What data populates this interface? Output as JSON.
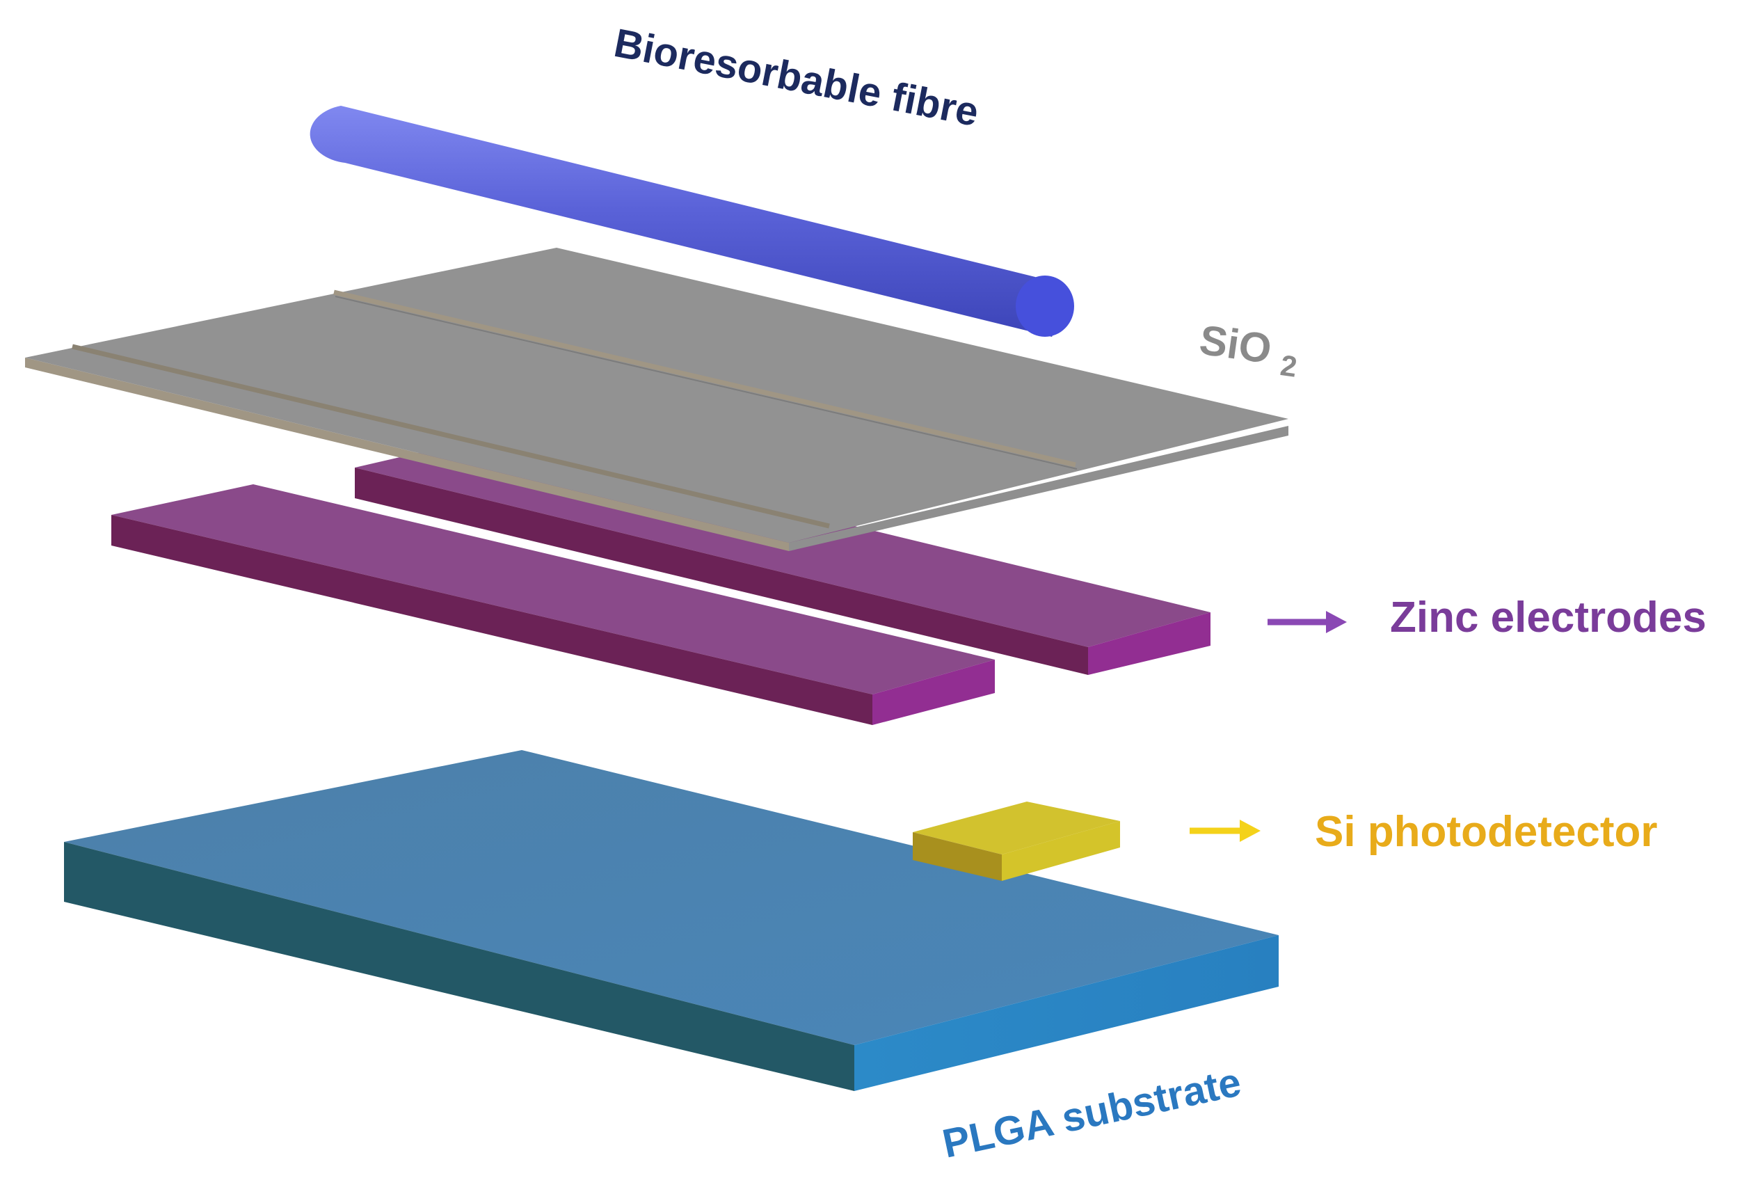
{
  "labels": {
    "fibre": "Bioresorbable fibre",
    "oxide_main": "SiO",
    "oxide_sub": "2",
    "electrodes": "Zinc electrodes",
    "photodetector": "Si photodetector",
    "substrate": "PLGA substrate"
  },
  "colors": {
    "fibre": "#5a62d8",
    "fibre_label": "#1c2a5e",
    "oxide": "#929292",
    "oxide_label": "#8a8a8a",
    "oxide_edge": "#a09684",
    "electrode_top": "#8a4a8a",
    "electrode_side": "#6b2256",
    "electrode_end": "#922e92",
    "electrodes_label": "#7a3c9a",
    "photodetector_top": "#d2c22e",
    "photodetector_label": "#e8ab1a",
    "photodetector_arrow": "#f4d21a",
    "substrate_top": "#4a84b2",
    "substrate_side": "#235866",
    "substrate_end": "#2a86c4",
    "substrate_label": "#2a78c0"
  }
}
